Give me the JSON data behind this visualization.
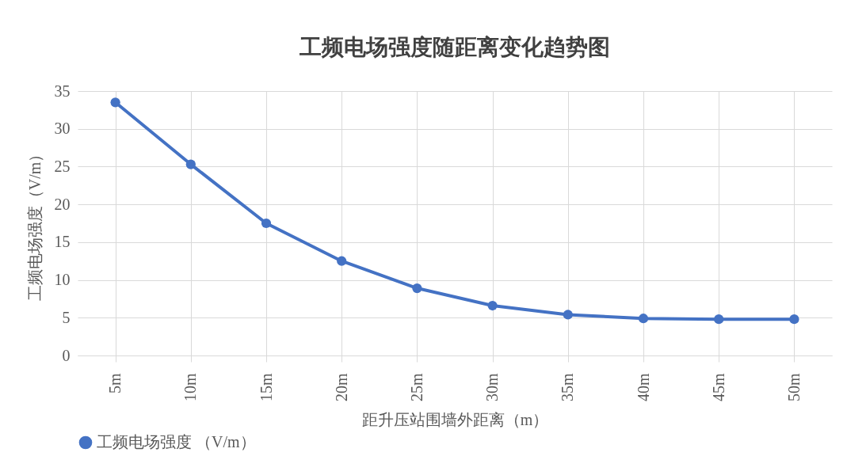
{
  "chart_data": {
    "type": "line",
    "title": "工频电场强度随距离变化趋势图",
    "xlabel": "距升压站围墙外距离（m）",
    "ylabel": "工频电场强度（V/m）",
    "categories": [
      "5m",
      "10m",
      "15m",
      "20m",
      "25m",
      "30m",
      "35m",
      "40m",
      "45m",
      "50m"
    ],
    "series": [
      {
        "name": "工频电场强度 （V/m）",
        "color": "#4472c4",
        "values": [
          33.5,
          25.3,
          17.5,
          12.5,
          8.9,
          6.6,
          5.4,
          4.9,
          4.8,
          4.8
        ]
      }
    ],
    "ylim": [
      0,
      35
    ],
    "yticks": [
      0,
      5,
      10,
      15,
      20,
      25,
      30,
      35
    ],
    "grid": true,
    "legend": "bottom",
    "marker": "circle",
    "line_style": "solid"
  }
}
